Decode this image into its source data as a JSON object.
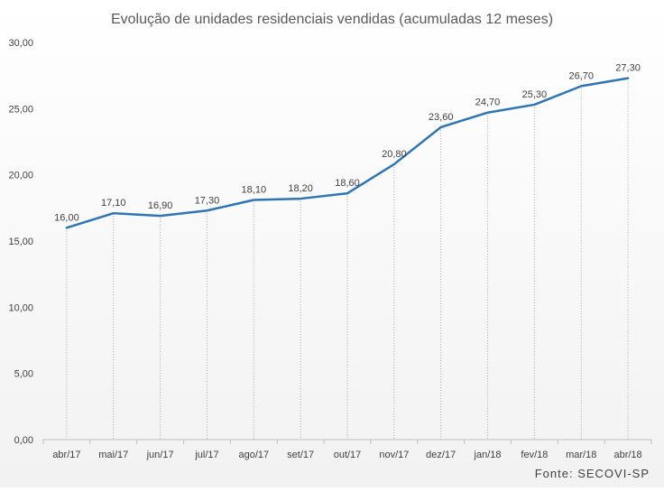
{
  "chart_data": {
    "type": "line",
    "title": "Evolução de unidades residenciais vendidas (acumuladas 12 meses)",
    "xlabel": "",
    "ylabel": "",
    "source": "Fonte: SECOVI-SP",
    "categories": [
      "abr/17",
      "mai/17",
      "jun/17",
      "jul/17",
      "ago/17",
      "set/17",
      "out/17",
      "nov/17",
      "dez/17",
      "jan/18",
      "fev/18",
      "mar/18",
      "abr/18"
    ],
    "values": [
      16.0,
      17.1,
      16.9,
      17.3,
      18.1,
      18.2,
      18.6,
      20.8,
      23.6,
      24.7,
      25.3,
      26.7,
      27.3
    ],
    "value_labels": [
      "16,00",
      "17,10",
      "16,90",
      "17,30",
      "18,10",
      "18,20",
      "18,60",
      "20,80",
      "23,60",
      "24,70",
      "25,30",
      "26,70",
      "27,30"
    ],
    "ylim": [
      0,
      30
    ],
    "yticks": [
      0,
      5,
      10,
      15,
      20,
      25,
      30
    ],
    "ytick_labels": [
      "0,00",
      "5,00",
      "10,00",
      "15,00",
      "20,00",
      "25,00",
      "30,00"
    ],
    "grid": false,
    "legend": "none",
    "colors": {
      "line": "#2e75b6",
      "text": "#404040",
      "title": "#595959",
      "axis": "#bfbfbf",
      "drop_line": "#a6a6a6",
      "background_top": "#ffffff",
      "background_bottom": "#f2f2f2"
    }
  }
}
